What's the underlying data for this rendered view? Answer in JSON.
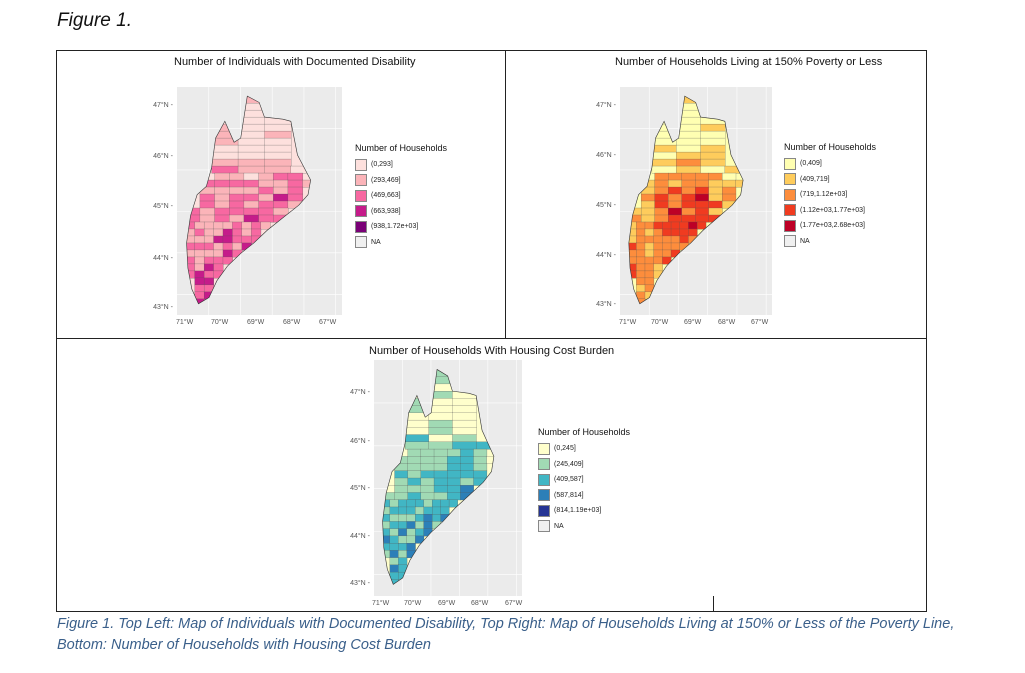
{
  "figure_label": "Figure 1.",
  "caption": "Figure 1. Top Left: Map of Individuals with Documented Disability, Top Right: Map of Households Living at 150% or Less of the Poverty Line, Bottom: Number of Households with Housing Cost Burden",
  "axes": {
    "lat_ticks": [
      "47°N",
      "46°N",
      "45°N",
      "44°N",
      "43°N"
    ],
    "lon_ticks": [
      "71°W",
      "70°W",
      "69°W",
      "68°W",
      "67°W"
    ]
  },
  "panels": [
    {
      "title": "Number of Individuals with Documented Disability",
      "legend_title": "Number of Households",
      "legend": [
        {
          "label": "(0,293]",
          "color": "#fde0dd"
        },
        {
          "label": "(293,469]",
          "color": "#fbb4b9"
        },
        {
          "label": "(469,663]",
          "color": "#f768a1"
        },
        {
          "label": "(663,938]",
          "color": "#c51b8a"
        },
        {
          "label": "(938,1.72e+03]",
          "color": "#7a0177"
        },
        {
          "label": "NA",
          "color": "#f0f0f0"
        }
      ]
    },
    {
      "title": "Number of Households Living at 150% Poverty or Less",
      "legend_title": "Number of Households",
      "legend": [
        {
          "label": "(0,409]",
          "color": "#ffffb2"
        },
        {
          "label": "(409,719]",
          "color": "#fecc5c"
        },
        {
          "label": "(719,1.12e+03]",
          "color": "#fd8d3c"
        },
        {
          "label": "(1.12e+03,1.77e+03]",
          "color": "#f03b20"
        },
        {
          "label": "(1.77e+03,2.68e+03]",
          "color": "#bd0026"
        },
        {
          "label": "NA",
          "color": "#f0f0f0"
        }
      ]
    },
    {
      "title": "Number of Households With Housing Cost Burden",
      "legend_title": "Number of Households",
      "legend": [
        {
          "label": "(0,245]",
          "color": "#ffffcc"
        },
        {
          "label": "(245,409]",
          "color": "#a1dab4"
        },
        {
          "label": "(409,587]",
          "color": "#41b6c4"
        },
        {
          "label": "(587,814]",
          "color": "#2c7fb8"
        },
        {
          "label": "(814,1.19e+03]",
          "color": "#253494"
        },
        {
          "label": "NA",
          "color": "#f0f0f0"
        }
      ]
    }
  ]
}
